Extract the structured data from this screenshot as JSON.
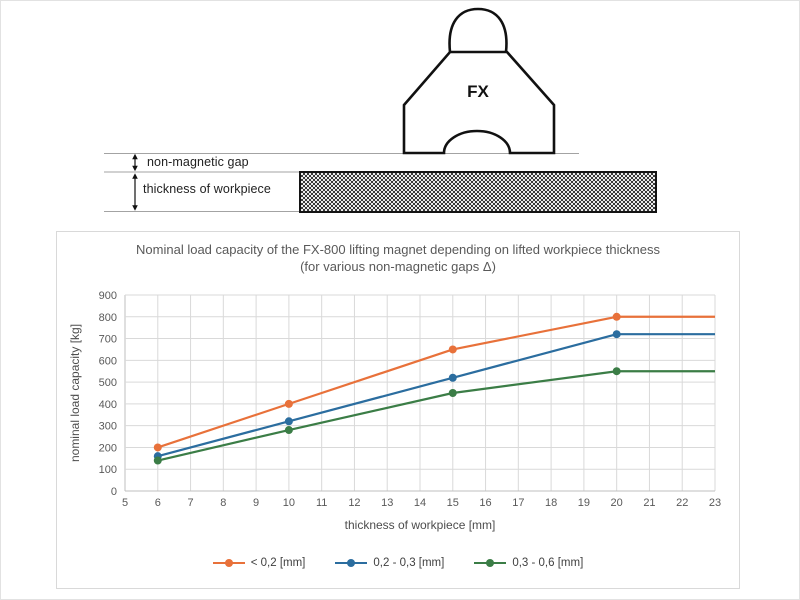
{
  "diagram": {
    "magnet_label": "FX",
    "gap_label": "non-magnetic gap",
    "workpiece_label": "thickness of workpiece"
  },
  "chart_data": {
    "type": "line",
    "title": "Nominal load capacity of the FX-800 lifting magnet depending on lifted workpiece thickness (for various non-magnetic gaps Δ)",
    "title_line1": "Nominal load capacity of the FX-800 lifting magnet depending on lifted workpiece thickness",
    "title_line2": "(for various non-magnetic gaps Δ)",
    "xlabel": "thickness of workpiece [mm]",
    "ylabel": "nominal load capacity [kg]",
    "xlim": [
      5,
      23
    ],
    "ylim": [
      0,
      900
    ],
    "x_ticks": [
      5,
      6,
      7,
      8,
      9,
      10,
      11,
      12,
      13,
      14,
      15,
      16,
      17,
      18,
      19,
      20,
      21,
      22,
      23
    ],
    "y_ticks": [
      0,
      100,
      200,
      300,
      400,
      500,
      600,
      700,
      800,
      900
    ],
    "grid": true,
    "legend_position": "bottom",
    "grid_color": "#d9d9d9",
    "axis_color": "#bfbfbf",
    "series": [
      {
        "name": "< 0,2 [mm]",
        "color": "#e8713a",
        "x": [
          6,
          10,
          15,
          20,
          23
        ],
        "y": [
          200,
          400,
          650,
          800,
          800
        ],
        "marker_x": [
          6,
          10,
          15,
          20
        ]
      },
      {
        "name": "0,2 - 0,3 [mm]",
        "color": "#2b6d9f",
        "x": [
          6,
          10,
          15,
          20,
          23
        ],
        "y": [
          160,
          320,
          520,
          720,
          720
        ],
        "marker_x": [
          6,
          10,
          15,
          20
        ]
      },
      {
        "name": "0,3 - 0,6 [mm]",
        "color": "#3b7d46",
        "x": [
          6,
          10,
          15,
          20,
          23
        ],
        "y": [
          140,
          280,
          450,
          550,
          550
        ],
        "marker_x": [
          6,
          10,
          15,
          20
        ]
      }
    ]
  }
}
